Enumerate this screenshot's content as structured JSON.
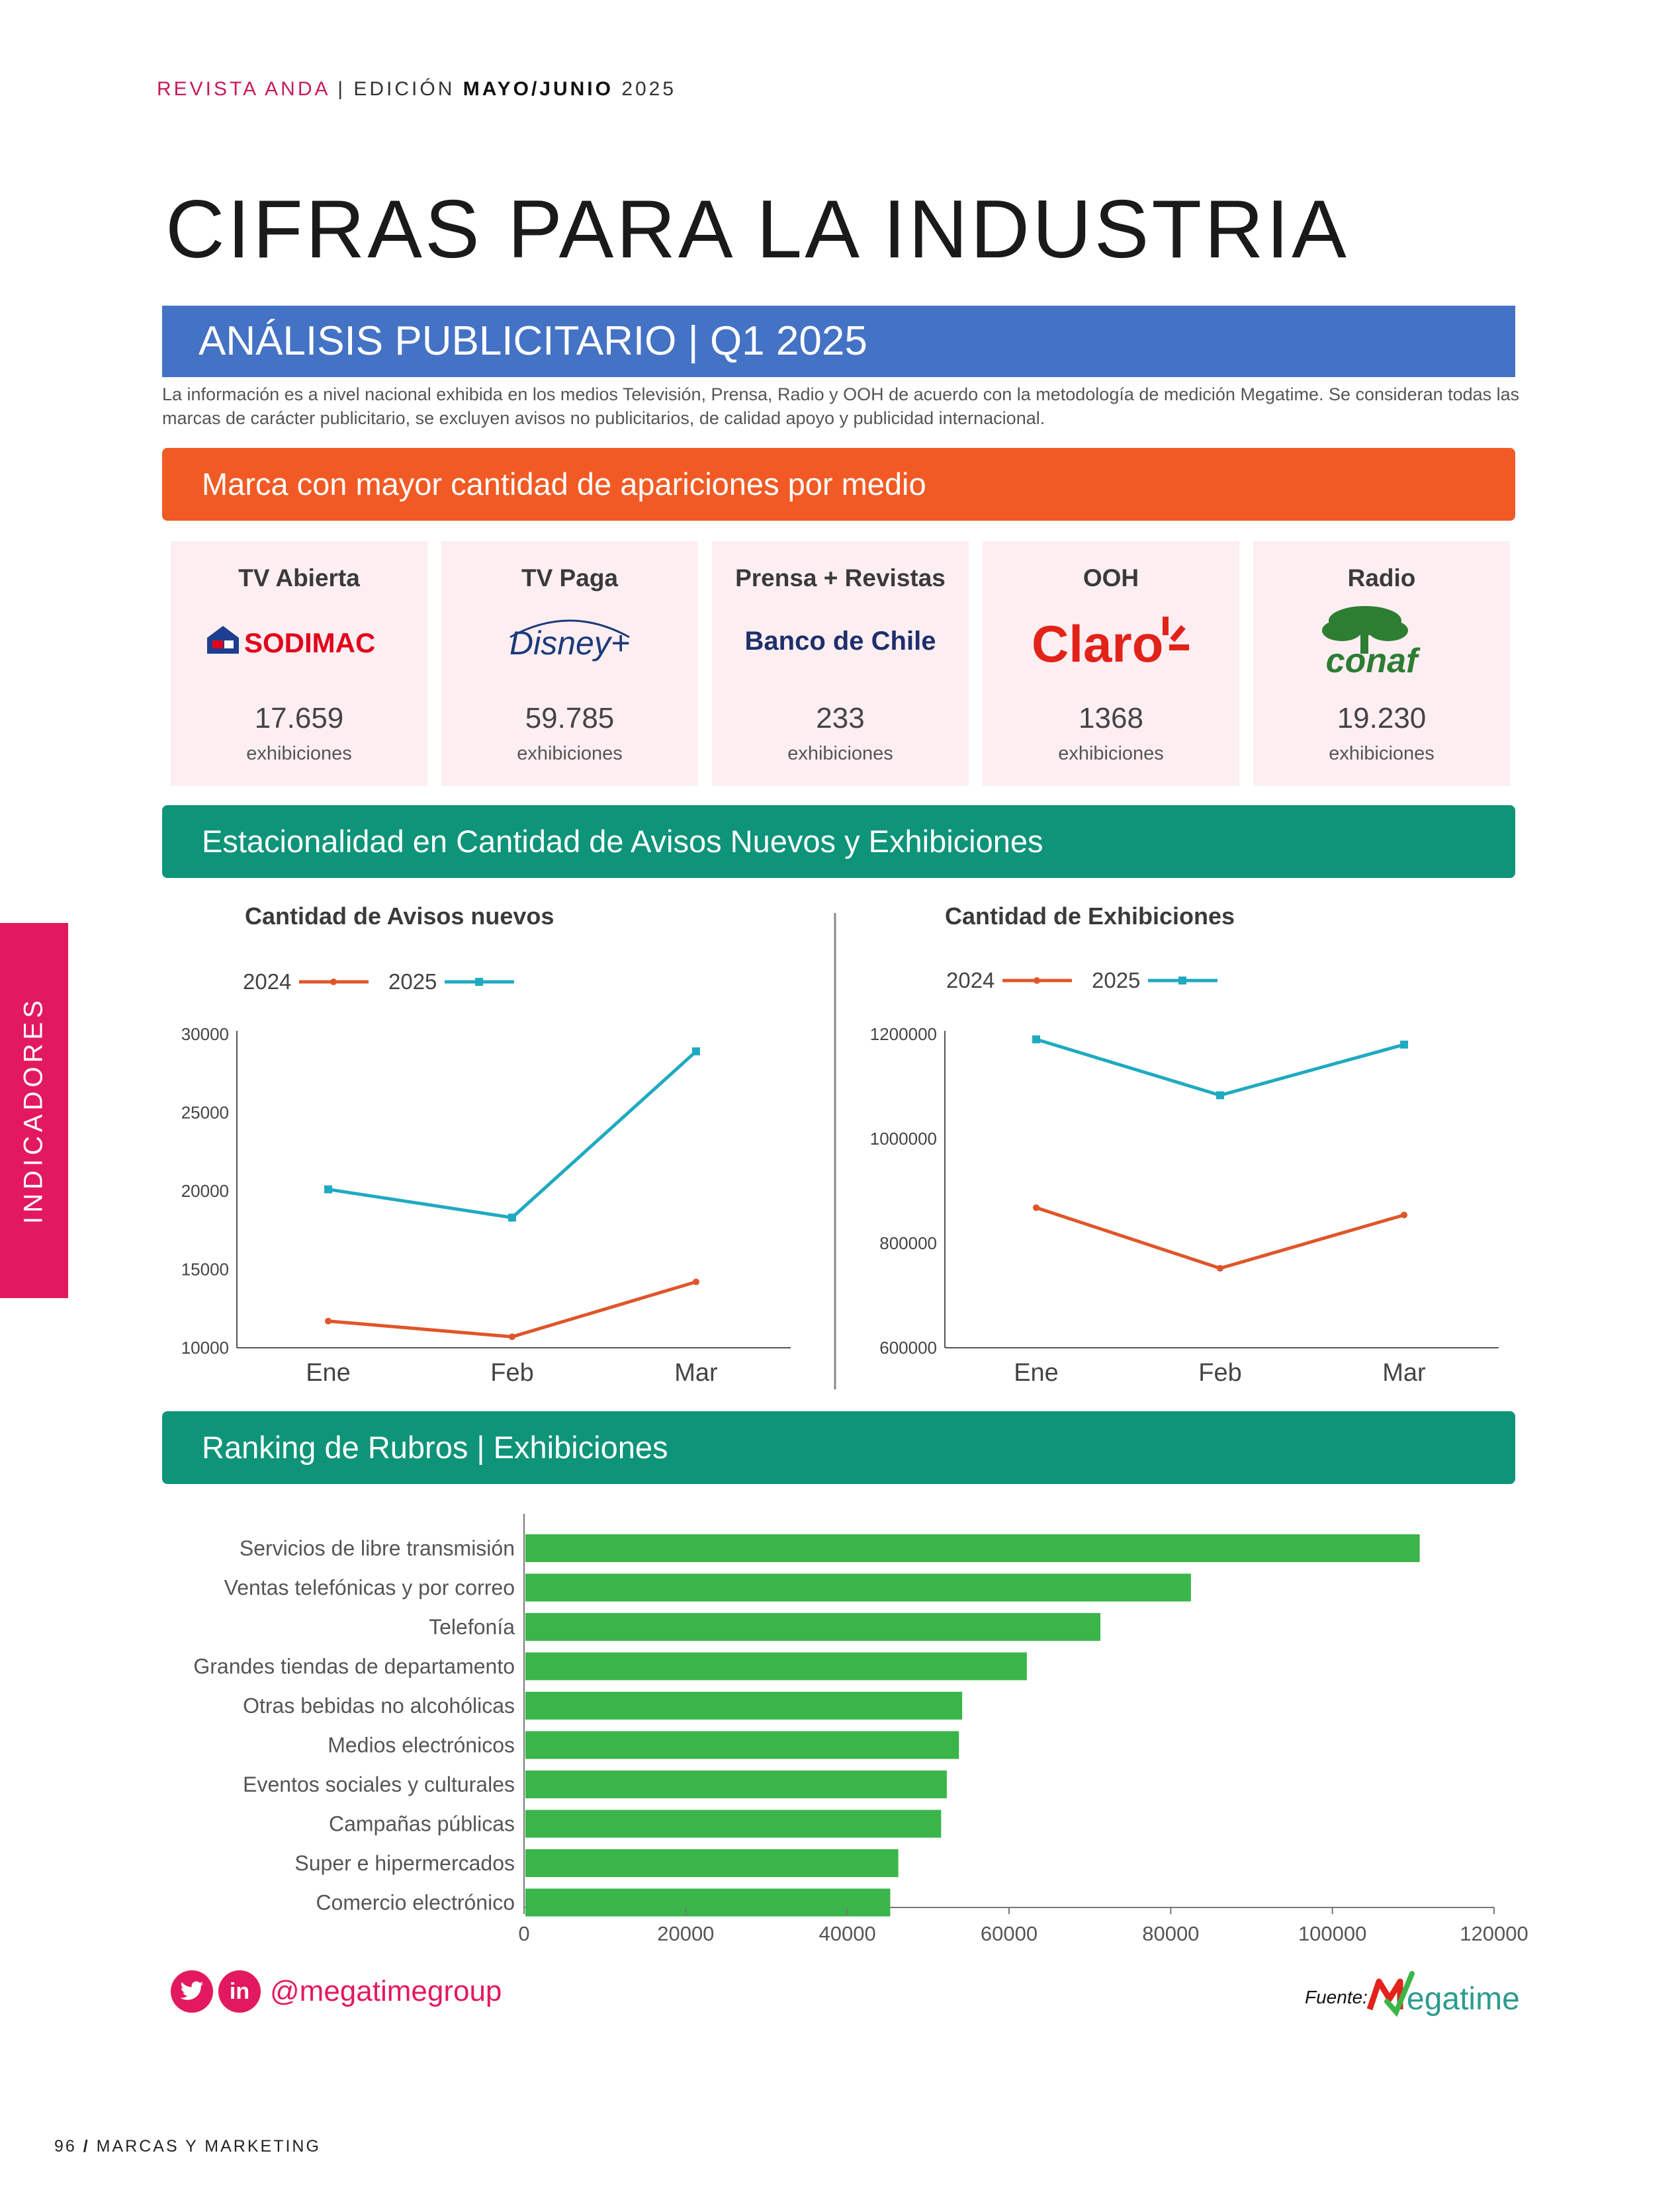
{
  "header": {
    "magazine": "REVISTA ANDA",
    "separator": "|",
    "edition_prefix": "EDICIÓN",
    "edition_bold": "MAYO/JUNIO",
    "year": "2025"
  },
  "title": "CIFRAS PARA LA INDUSTRIA",
  "subtitle": "ANÁLISIS PUBLICITARIO | Q1 2025",
  "intro_text": "La información es a nivel nacional exhibida en los medios Televisión, Prensa, Radio y OOH de acuerdo con la metodología de medición Megatime. Se consideran todas las marcas de carácter publicitario, se excluyen avisos no publicitarios, de calidad apoyo y publicidad internacional.",
  "brands_section": {
    "heading": "Marca con mayor cantidad de apariciones por medio",
    "cards": [
      {
        "medium": "TV Abierta",
        "brand": "SODIMAC",
        "value": "17.659",
        "unit": "exhibiciones",
        "color": "#e2001a"
      },
      {
        "medium": "TV Paga",
        "brand": "Disney+",
        "value": "59.785",
        "unit": "exhibiciones",
        "color": "#1b3a7a"
      },
      {
        "medium": "Prensa + Revistas",
        "brand": "Banco de Chile",
        "value": "233",
        "unit": "exhibiciones",
        "color": "#1e2f6b"
      },
      {
        "medium": "OOH",
        "brand": "Claro",
        "value": "1368",
        "unit": "exhibiciones",
        "color": "#e2231a"
      },
      {
        "medium": "Radio",
        "brand": "conaf",
        "value": "19.230",
        "unit": "exhibiciones",
        "color": "#2d7d32"
      }
    ]
  },
  "season_section": {
    "heading": "Estacionalidad en Cantidad de Avisos Nuevos y Exhibiciones"
  },
  "ranking_section": {
    "heading": "Ranking de Rubros | Exhibiciones"
  },
  "side_tab": "INDICADORES",
  "chart_data": [
    {
      "type": "line",
      "title": "Cantidad de Avisos nuevos",
      "categories": [
        "Ene",
        "Feb",
        "Mar"
      ],
      "series": [
        {
          "name": "2024",
          "color": "#e0552a",
          "values": [
            11700,
            10700,
            14200
          ]
        },
        {
          "name": "2025",
          "color": "#1faac1",
          "values": [
            20100,
            18300,
            28900
          ]
        }
      ],
      "ylim": [
        10000,
        30000
      ],
      "yticks": [
        10000,
        15000,
        20000,
        25000,
        30000
      ],
      "legend": "top-left"
    },
    {
      "type": "line",
      "title": "Cantidad de Exhibiciones",
      "categories": [
        "Ene",
        "Feb",
        "Mar"
      ],
      "series": [
        {
          "name": "2024",
          "color": "#e0552a",
          "values": [
            868000,
            752000,
            854000
          ]
        },
        {
          "name": "2025",
          "color": "#1faac1",
          "values": [
            1190000,
            1083000,
            1180000
          ]
        }
      ],
      "ylim": [
        600000,
        1200000
      ],
      "yticks": [
        600000,
        800000,
        1000000,
        1200000
      ],
      "legend": "top-left"
    },
    {
      "type": "bar",
      "orientation": "horizontal",
      "title": "Ranking de Rubros | Exhibiciones",
      "color": "#3ab54a",
      "categories": [
        "Servicios de libre transmisión",
        "Ventas telefónicas y por correo",
        "Telefonía",
        "Grandes tiendas de departamento",
        "Otras bebidas no alcohólicas",
        "Medios electrónicos",
        "Eventos sociales y culturales",
        "Campañas públicas",
        "Super e hipermercados",
        "Comercio electrónico"
      ],
      "values": [
        110800,
        82500,
        71300,
        62200,
        54200,
        53800,
        52300,
        51600,
        46300,
        45300
      ],
      "xlim": [
        0,
        120000
      ],
      "xticks": [
        0,
        20000,
        40000,
        60000,
        80000,
        100000,
        120000
      ]
    }
  ],
  "footer": {
    "social_twitter": "twitter-icon",
    "social_linkedin": "in",
    "handle": "@megatimegroup",
    "fuente": "Fuente:",
    "megatime_logo": "egatime",
    "page": "96",
    "slash": "/",
    "section": "MARCAS Y MARKETING"
  }
}
